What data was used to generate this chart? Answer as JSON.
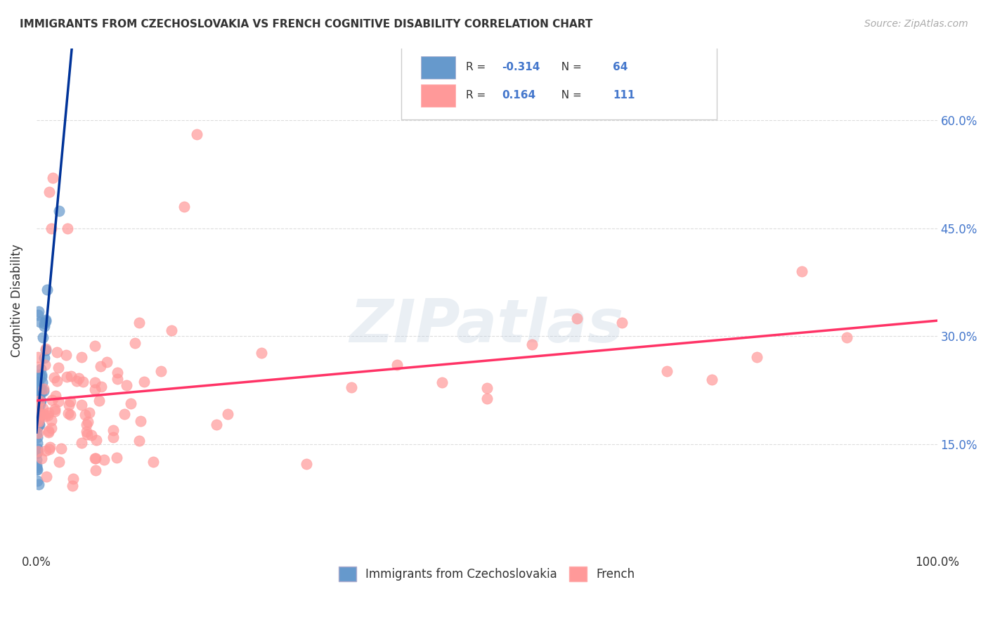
{
  "title": "IMMIGRANTS FROM CZECHOSLOVAKIA VS FRENCH COGNITIVE DISABILITY CORRELATION CHART",
  "source": "Source: ZipAtlas.com",
  "ylabel": "Cognitive Disability",
  "legend_bottom": [
    "Immigrants from Czechoslovakia",
    "French"
  ],
  "r_czech": -0.314,
  "n_czech": 64,
  "r_french": 0.164,
  "n_french": 111,
  "xlim": [
    0.0,
    1.0
  ],
  "ylim": [
    0.0,
    0.7
  ],
  "ytick_positions": [
    0.15,
    0.3,
    0.45,
    0.6
  ],
  "ytick_labels": [
    "15.0%",
    "30.0%",
    "45.0%",
    "60.0%"
  ],
  "color_czech": "#6699CC",
  "color_czech_line": "#003399",
  "color_french": "#FF9999",
  "color_french_line": "#FF3366",
  "background_color": "#FFFFFF",
  "grid_color": "#DDDDDD",
  "watermark": "ZIPatlas"
}
